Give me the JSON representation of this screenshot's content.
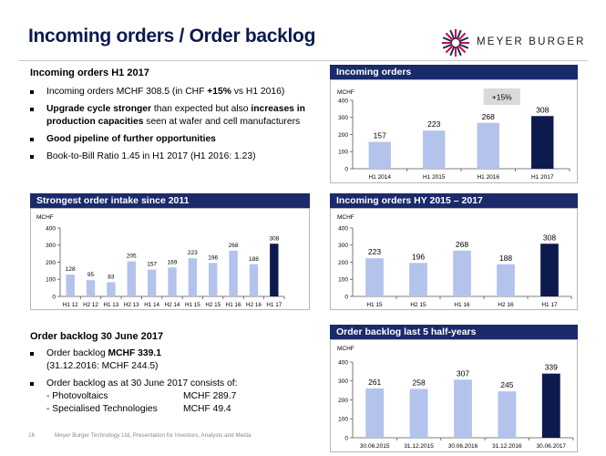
{
  "header": {
    "title": "Incoming orders / Order backlog",
    "brand": "MEYER BURGER"
  },
  "incoming_section": {
    "heading": "Incoming orders H1 2017",
    "bullets": [
      {
        "parts": [
          {
            "t": "Incoming orders MCHF 308.5 (in CHF ",
            "b": false
          },
          {
            "t": "+15%",
            "b": true
          },
          {
            "t": " vs H1 2016)",
            "b": false
          }
        ]
      },
      {
        "parts": [
          {
            "t": "Upgrade cycle stronger",
            "b": true
          },
          {
            "t": " than expected but also ",
            "b": false
          },
          {
            "t": "increases in production capacities",
            "b": true
          },
          {
            "t": " seen at wafer and cell manufacturers",
            "b": false
          }
        ]
      },
      {
        "parts": [
          {
            "t": "Good pipeline of further opportunities",
            "b": true
          }
        ]
      },
      {
        "parts": [
          {
            "t": "Book-to-Bill Ratio 1.45 in H1 2017 (H1 2016: 1.23)",
            "b": false
          }
        ]
      }
    ]
  },
  "backlog_section": {
    "heading": "Order backlog 30 June 2017",
    "bullet1_prefix": "Order backlog ",
    "bullet1_bold": "MCHF 339.1",
    "bullet1_line2": "(31.12.2016: MCHF 244.5)",
    "bullet2_line1": "Order backlog as at 30 June 2017 consists of:",
    "items": [
      {
        "label": "- Photovoltaics",
        "value": "MCHF 289.7"
      },
      {
        "label": "- Specialised Technologies",
        "value": "MCHF  49.4"
      }
    ]
  },
  "footer": {
    "page": "16",
    "text": "Meyer Burger Technology Ltd, Presentation for Investors, Analysts and Media"
  },
  "colors": {
    "navy": "#1b2a6b",
    "bar_light": "#b4c3ec",
    "bar_dark": "#0d1a4e"
  },
  "chart_data": [
    {
      "id": "incoming_h1",
      "type": "bar",
      "title": "Incoming orders",
      "ylabel": "MCHF",
      "ylim": [
        0,
        400
      ],
      "yticks": [
        0,
        100,
        200,
        300,
        400
      ],
      "categories": [
        "H1 2014",
        "H1 2015",
        "H1 2016",
        "H1 2017"
      ],
      "values": [
        157,
        223,
        268,
        308
      ],
      "highlight_last": true,
      "annotation": "+15%"
    },
    {
      "id": "strongest_intake",
      "type": "bar",
      "title": "Strongest order intake since 2011",
      "ylabel": "MCHF",
      "ylim": [
        0,
        400
      ],
      "yticks": [
        0,
        100,
        200,
        300,
        400
      ],
      "categories": [
        "H1 12",
        "H2 12",
        "H1 13",
        "H2 13",
        "H1 14",
        "H2 14",
        "H1 15",
        "H2 15",
        "H1 16",
        "H2 16",
        "H1 17"
      ],
      "values": [
        128,
        95,
        83,
        205,
        157,
        169,
        223,
        196,
        268,
        188,
        308
      ],
      "highlight_last": true
    },
    {
      "id": "incoming_hy",
      "type": "bar",
      "title": "Incoming orders HY 2015 – 2017",
      "ylabel": "MCHF",
      "ylim": [
        0,
        400
      ],
      "yticks": [
        0,
        100,
        200,
        300,
        400
      ],
      "categories": [
        "H1 15",
        "H2 15",
        "H1 16",
        "H2 16",
        "H1 17"
      ],
      "values": [
        223,
        196,
        268,
        188,
        308
      ],
      "highlight_last": true
    },
    {
      "id": "backlog",
      "type": "bar",
      "title": "Order backlog last 5 half-years",
      "ylabel": "MCHF",
      "ylim": [
        0,
        400
      ],
      "yticks": [
        0,
        100,
        200,
        300,
        400
      ],
      "categories": [
        "30.06.2015",
        "31.12.2015",
        "30.06.2016",
        "31.12.2016",
        "30.06.2017"
      ],
      "values": [
        261,
        258,
        307,
        245,
        339
      ],
      "highlight_last": true
    }
  ]
}
